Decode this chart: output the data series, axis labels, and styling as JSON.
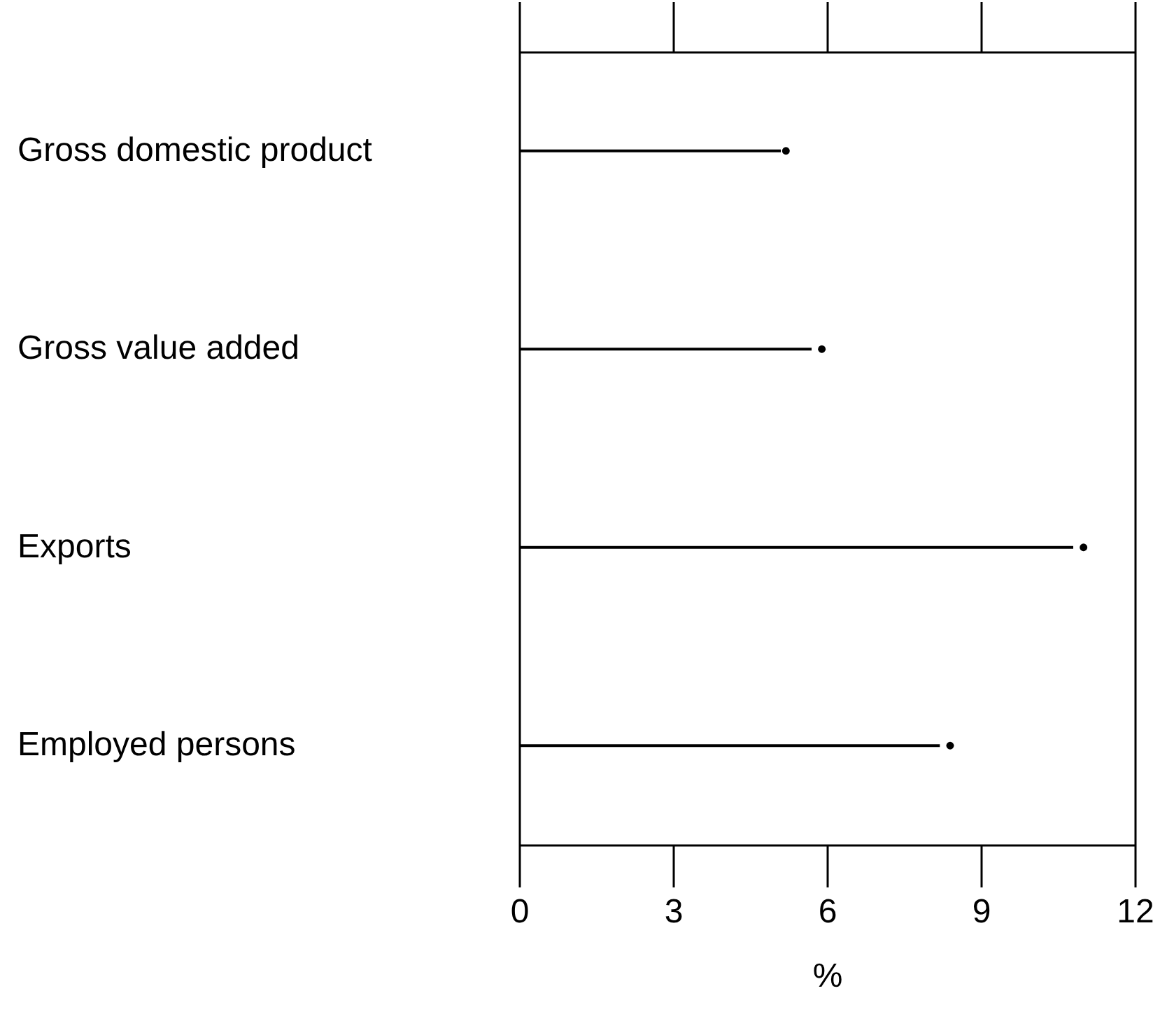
{
  "chart_data": {
    "type": "bar",
    "orientation": "horizontal",
    "categories": [
      "Gross domestic product",
      "Gross value added",
      "Exports",
      "Employed persons"
    ],
    "series": [
      {
        "color": "#000000",
        "values": [
          5.1,
          5.7,
          10.8,
          8.2
        ]
      },
      {
        "type": "scatter",
        "color": "#000000",
        "values": [
          5.2,
          5.9,
          11.0,
          8.4
        ]
      }
    ],
    "xlabel": "%",
    "xlim": [
      0,
      12
    ],
    "xticks": [
      0,
      3,
      6,
      9,
      12
    ],
    "grid": false,
    "marker": "circle"
  }
}
